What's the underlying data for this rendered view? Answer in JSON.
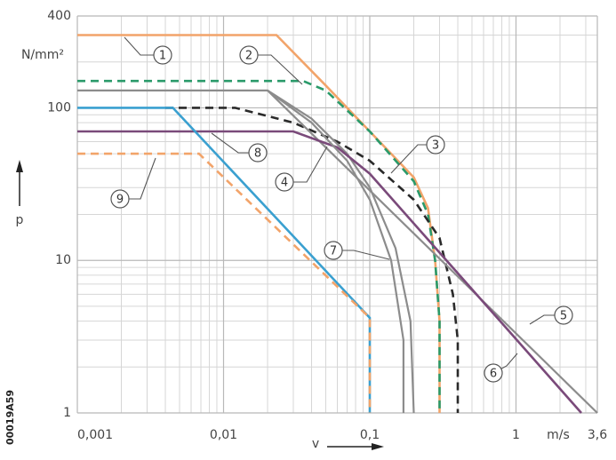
{
  "chart_data": {
    "type": "line",
    "x_label": "v",
    "x_unit": "m/s",
    "y_label": "p",
    "y_unit": "N/mm²",
    "side_text": "00019A59",
    "xscale": "log",
    "yscale": "log",
    "grid": true,
    "xlim": [
      0.001,
      3.6
    ],
    "ylim": [
      1,
      400
    ],
    "xticks": [
      {
        "value": 0.001,
        "label": "0,001"
      },
      {
        "value": 0.01,
        "label": "0,01"
      },
      {
        "value": 0.1,
        "label": "0,1"
      },
      1,
      {
        "value": 3.6,
        "label": "3,6"
      }
    ],
    "yticks": [
      1,
      10,
      100,
      400
    ],
    "xgrid": [
      0.002,
      0.003,
      0.004,
      0.005,
      0.006,
      0.007,
      0.008,
      0.009,
      0.02,
      0.03,
      0.04,
      0.05,
      0.06,
      0.07,
      0.08,
      0.09,
      0.2,
      0.3,
      0.4,
      0.5,
      0.6,
      0.7,
      0.8,
      0.9,
      2,
      3
    ],
    "ygrid": [
      2,
      3,
      4,
      5,
      6,
      7,
      8,
      9,
      20,
      30,
      40,
      50,
      60,
      70,
      80,
      90,
      200,
      300
    ],
    "series": [
      {
        "name": "1",
        "color": "#f2a46a",
        "dash": false,
        "x": [
          0.001,
          0.023,
          0.05,
          0.1,
          0.2,
          0.25,
          0.28,
          0.3,
          0.3
        ],
        "values": [
          300,
          300,
          140,
          70,
          35,
          22,
          10,
          4,
          1
        ]
      },
      {
        "name": "2",
        "color": "#2a9a6a",
        "dash": true,
        "x": [
          0.001,
          0.035,
          0.05,
          0.1,
          0.2,
          0.25,
          0.28,
          0.3,
          0.3
        ],
        "values": [
          150,
          150,
          130,
          70,
          33,
          20,
          10,
          4,
          1
        ]
      },
      {
        "name": "3",
        "color": "#2a2a2a",
        "dash": true,
        "x": [
          0.004,
          0.012,
          0.03,
          0.06,
          0.1,
          0.2,
          0.3,
          0.37,
          0.4,
          0.4
        ],
        "values": [
          100,
          100,
          80,
          60,
          45,
          25,
          14,
          6,
          3,
          1
        ]
      },
      {
        "name": "4",
        "color": "#8c8c8c",
        "dash": false,
        "x": [
          0.001,
          0.02,
          0.04,
          0.07,
          0.1,
          0.15,
          0.19,
          0.2
        ],
        "values": [
          130,
          130,
          85,
          50,
          30,
          12,
          4,
          1
        ]
      },
      {
        "name": "5",
        "color": "#8c8c8c",
        "dash": false,
        "x": [
          0.02,
          3.6
        ],
        "values": [
          130,
          1
        ]
      },
      {
        "name": "6",
        "color": "#7a4a7a",
        "dash": false,
        "x": [
          0.001,
          0.03,
          0.06,
          0.1,
          2.8
        ],
        "values": [
          70,
          70,
          55,
          37,
          1
        ]
      },
      {
        "name": "7",
        "color": "#8c8c8c",
        "dash": false,
        "x": [
          0.02,
          0.04,
          0.07,
          0.1,
          0.14,
          0.17,
          0.17
        ],
        "values": [
          130,
          80,
          45,
          25,
          10,
          3,
          1
        ]
      },
      {
        "name": "8",
        "color": "#3aa0d0",
        "dash": false,
        "x": [
          0.001,
          0.0045,
          0.1,
          0.1
        ],
        "values": [
          100,
          100,
          4.2,
          1
        ]
      },
      {
        "name": "9",
        "color": "#f2a46a",
        "dash": true,
        "x": [
          0.001,
          0.0068,
          0.1,
          0.1
        ],
        "values": [
          50,
          50,
          4.2,
          1
        ]
      }
    ]
  }
}
